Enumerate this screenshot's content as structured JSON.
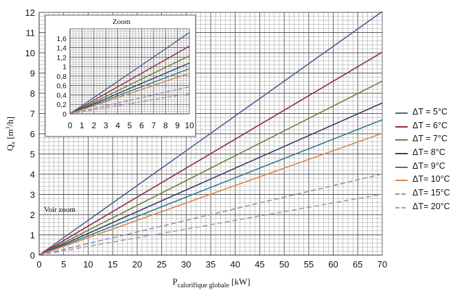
{
  "chart_data": {
    "type": "line",
    "xlabel_main": "P",
    "xlabel_sub": "calorifique globale",
    "xlabel_unit": "[kW]",
    "ylabel_main": "Q",
    "ylabel_sub": "v",
    "ylabel_unit_pre": "[m",
    "ylabel_unit_sup": "3",
    "ylabel_unit_post": "/h]",
    "xlim": [
      0,
      70
    ],
    "ylim": [
      0,
      12
    ],
    "x_ticks": [
      "0",
      "5",
      "10",
      "15",
      "20",
      "25",
      "30",
      "35",
      "40",
      "45",
      "50",
      "55",
      "60",
      "65",
      "70"
    ],
    "y_ticks": [
      "0",
      "1",
      "2",
      "3",
      "4",
      "5",
      "6",
      "7",
      "8",
      "9",
      "10",
      "11",
      "12"
    ],
    "grid": true,
    "legend_position": "right",
    "annotation": "Voir zoom",
    "series": [
      {
        "name": "ΔT =  5°C",
        "color": "#4a5f8c",
        "dashed": false,
        "x": [
          0,
          70
        ],
        "values": [
          0,
          12.04
        ]
      },
      {
        "name": "ΔT =  6°C",
        "color": "#8c2a45",
        "dashed": false,
        "x": [
          0,
          70
        ],
        "values": [
          0,
          10.03
        ]
      },
      {
        "name": "ΔT =  7°C",
        "color": "#6d7d3a",
        "dashed": false,
        "x": [
          0,
          70
        ],
        "values": [
          0,
          8.6
        ]
      },
      {
        "name": "ΔT=  8°C",
        "color": "#3a3b63",
        "dashed": false,
        "x": [
          0,
          70
        ],
        "values": [
          0,
          7.52
        ]
      },
      {
        "name": "ΔT=  9°C",
        "color": "#2f7e8c",
        "dashed": false,
        "x": [
          0,
          70
        ],
        "values": [
          0,
          6.69
        ]
      },
      {
        "name": "ΔT=  10°C",
        "color": "#d9854a",
        "dashed": false,
        "x": [
          0,
          70
        ],
        "values": [
          0,
          6.02
        ]
      },
      {
        "name": "ΔT=  15°C",
        "color": "#8a93b8",
        "dashed": true,
        "x": [
          0,
          70
        ],
        "values": [
          0,
          4.01
        ]
      },
      {
        "name": "ΔT=  20°C",
        "color": "#b894a8",
        "dashed": true,
        "x": [
          0,
          70
        ],
        "values": [
          0,
          3.01
        ]
      }
    ],
    "inset": {
      "title": "Zoom",
      "xlim": [
        0,
        10
      ],
      "ylim": [
        0,
        1.8
      ],
      "x_ticks": [
        "0",
        "1",
        "2",
        "3",
        "4",
        "5",
        "6",
        "7",
        "8",
        "9",
        "10"
      ],
      "y_ticks": [
        "0",
        "0,2",
        "0,4",
        "0,6",
        "0,8",
        "1",
        "1,2",
        "1,4",
        "1,6"
      ]
    }
  }
}
